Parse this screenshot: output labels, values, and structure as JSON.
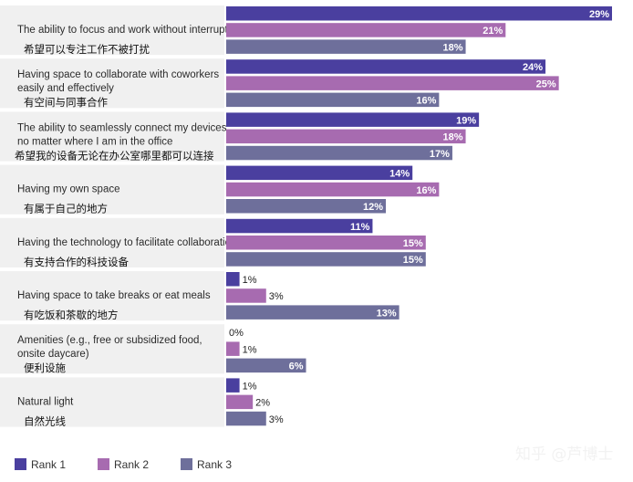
{
  "chart_data": {
    "type": "bar",
    "orientation": "horizontal",
    "categories": [
      {
        "en": "The ability to focus and work without interruptions",
        "zh": "希望可以专注工作不被打扰"
      },
      {
        "en": "Having space to collaborate with coworkers easily and effectively",
        "zh": "有空间与同事合作"
      },
      {
        "en": "The ability to seamlessly connect my devices no matter where I am in the office",
        "zh": "希望我的设备无论在办公室哪里都可以连接"
      },
      {
        "en": "Having my own space",
        "zh": "有属于自己的地方"
      },
      {
        "en": "Having the technology to facilitate collaboration",
        "zh": "有支持合作的科技设备"
      },
      {
        "en": "Having space to take breaks or eat meals",
        "zh": "有吃饭和茶歇的地方"
      },
      {
        "en": "Amenities (e.g., free or subsidized food, onsite daycare)",
        "zh": "便利设施"
      },
      {
        "en": "Natural light",
        "zh": "自然光线"
      }
    ],
    "series": [
      {
        "name": "Rank 1",
        "color": "#4a3f9f",
        "values": [
          29,
          24,
          19,
          14,
          11,
          1,
          0,
          1
        ]
      },
      {
        "name": "Rank 2",
        "color": "#a76bb0",
        "values": [
          21,
          25,
          18,
          16,
          15,
          3,
          1,
          2
        ]
      },
      {
        "name": "Rank 3",
        "color": "#6e6f9b",
        "values": [
          18,
          16,
          17,
          12,
          15,
          13,
          6,
          3
        ]
      }
    ],
    "value_suffix": "%",
    "xlim": [
      0,
      29
    ],
    "legend_position": "bottom-left",
    "grid": false
  },
  "watermark": "知乎 @芦博士"
}
